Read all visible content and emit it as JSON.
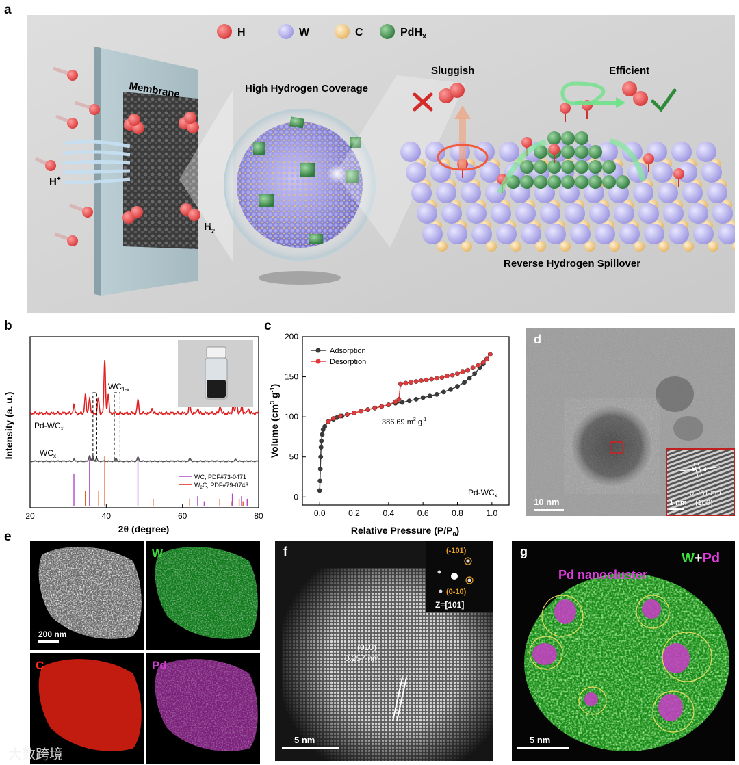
{
  "panel_a": {
    "label": "a",
    "legend": [
      {
        "label": "H",
        "color": "#e04848"
      },
      {
        "label": "W",
        "color": "#b7b3ec"
      },
      {
        "label": "C",
        "color": "#efc98a"
      },
      {
        "label": "PdH",
        "sub": "x",
        "color": "#3f8f4f"
      }
    ],
    "membrane_label": "Membrane",
    "proton_label": "H",
    "proton_sup": "+",
    "h2_label": "H",
    "h2_sub": "2",
    "coverage_label": "High Hydrogen Coverage",
    "sluggish_label": "Sluggish",
    "efficient_label": "Efficient",
    "spillover_label": "Reverse Hydrogen Spillover"
  },
  "panel_b": {
    "label": "b",
    "wc1x_main": "WC",
    "wc1x_sub": "1-x",
    "pd_wcx_main": "Pd-WC",
    "pd_wcx_sub": "x",
    "wcx_main": "WC",
    "wcx_sub": "x",
    "legend_wc": "WC, PDF#73-0471",
    "legend_w2c_main": "W",
    "legend_w2c_sub": "2",
    "legend_w2c_rest": "C, PDF#79-0743"
  },
  "panel_c": {
    "label": "c",
    "area_main": "386.69 m",
    "area_sup": "2",
    "area_rest": " g",
    "area_sup2": "-1",
    "sample_main": "Pd-WC",
    "sample_sub": "x"
  },
  "panel_d": {
    "label": "d",
    "scale_main": "10 nm",
    "scale_inset": "1 nm",
    "d_spacing": "0.251 nm",
    "plane": "(100)"
  },
  "panel_e": {
    "label": "e",
    "scale": "200 nm",
    "map_w": "W",
    "map_c": "C",
    "map_pd": "Pd"
  },
  "panel_f": {
    "label": "f",
    "plane": "(010)",
    "d_spacing": "0.257 nm",
    "fft_spot1": "(-101)",
    "fft_spot2": "(0-10)",
    "zone": "Z=[101]",
    "scale": "5 nm"
  },
  "panel_g": {
    "label": "g",
    "title_w": "W",
    "title_plus": "+",
    "title_pd": "Pd",
    "nanocluster": "Pd nanocluster",
    "scale": "5 nm"
  },
  "watermark": "大数跨境",
  "chart_data": [
    {
      "type": "line",
      "panel": "b",
      "xlabel": "2θ (degree)",
      "ylabel": "Intensity (a. u.)",
      "xlim": [
        20,
        80
      ],
      "x_ticks": [
        "20",
        "40",
        "60",
        "80"
      ],
      "series": [
        {
          "name": "Pd-WCx",
          "color": "#e02020",
          "peaks": [
            [
              31.5,
              0.15
            ],
            [
              34.5,
              0.35
            ],
            [
              35.6,
              0.3
            ],
            [
              37.9,
              0.3
            ],
            [
              39.6,
              1.0
            ],
            [
              40.5,
              0.35
            ],
            [
              48.3,
              0.25
            ],
            [
              52.0,
              0.1
            ],
            [
              61.9,
              0.2
            ],
            [
              64.0,
              0.1
            ],
            [
              69.9,
              0.15
            ],
            [
              73.3,
              0.15
            ],
            [
              74.2,
              0.25
            ],
            [
              75.6,
              0.15
            ],
            [
              77.3,
              0.1
            ]
          ]
        },
        {
          "name": "WCx",
          "color": "#555555",
          "peaks": [
            [
              31.5,
              0.1
            ],
            [
              35.6,
              0.3
            ],
            [
              36.5,
              0.25
            ],
            [
              37.4,
              0.15
            ],
            [
              42.6,
              0.15
            ],
            [
              48.3,
              0.2
            ],
            [
              62.0,
              0.15
            ],
            [
              74.0,
              0.1
            ]
          ]
        }
      ],
      "reference_lines": [
        {
          "name": "WC, PDF#73-0471",
          "color": "#b04cc8",
          "positions": [
            31.5,
            35.6,
            48.3,
            64.0,
            65.7,
            73.1,
            75.5,
            77.0
          ]
        },
        {
          "name": "W2C, PDF#79-0743",
          "color": "#e45a1e",
          "positions": [
            34.5,
            38.0,
            39.6,
            52.3,
            61.9,
            69.8,
            72.8,
            74.9,
            75.9
          ]
        }
      ],
      "reference_heights": {
        "WC": [
          0.65,
          1.0,
          1.0,
          0.2,
          0.1,
          0.25,
          0.2,
          0.15
        ],
        "W2C": [
          0.3,
          0.3,
          1.0,
          0.15,
          0.15,
          0.15,
          0.1,
          0.15,
          0.1
        ]
      },
      "wc1x_region_x": [
        [
          36.5,
          37.5
        ],
        [
          42.1,
          43.6
        ]
      ]
    },
    {
      "type": "line",
      "panel": "c",
      "xlabel": "Relative Pressure (P/P",
      "xlabel_sub": "0",
      "xlabel_end": ")",
      "ylabel": "Volume (cm",
      "ylabel_sup": "3",
      "ylabel_mid": " g",
      "ylabel_sup2": "-1",
      "ylabel_end": ")",
      "xlim": [
        -0.1,
        1.1
      ],
      "ylim": [
        -10,
        200
      ],
      "x_ticks": [
        "0.0",
        "0.2",
        "0.4",
        "0.6",
        "0.8",
        "1.0"
      ],
      "y_ticks": [
        "0",
        "50",
        "100",
        "150",
        "200"
      ],
      "series": [
        {
          "name": "Adsorption",
          "color": "#3a3a3a",
          "x": [
            0.0,
            0.002,
            0.004,
            0.006,
            0.008,
            0.01,
            0.015,
            0.02,
            0.03,
            0.05,
            0.08,
            0.1,
            0.13,
            0.16,
            0.2,
            0.24,
            0.28,
            0.32,
            0.36,
            0.4,
            0.44,
            0.48,
            0.52,
            0.56,
            0.6,
            0.64,
            0.68,
            0.72,
            0.76,
            0.8,
            0.84,
            0.87,
            0.9,
            0.93,
            0.95,
            0.97,
            0.99
          ],
          "y": [
            8,
            20,
            35,
            50,
            62,
            70,
            78,
            84,
            88,
            94,
            97,
            99,
            101,
            103,
            105,
            107,
            109,
            111,
            113,
            115,
            117,
            118,
            120,
            122,
            124,
            126,
            128,
            131,
            134,
            138,
            143,
            148,
            154,
            161,
            166,
            172,
            178
          ]
        },
        {
          "name": "Desorption",
          "color": "#e23a3a",
          "x": [
            0.99,
            0.97,
            0.95,
            0.92,
            0.89,
            0.86,
            0.83,
            0.8,
            0.77,
            0.74,
            0.71,
            0.68,
            0.65,
            0.62,
            0.59,
            0.56,
            0.53,
            0.5,
            0.47,
            0.46,
            0.44,
            0.4,
            0.36,
            0.32,
            0.28,
            0.24,
            0.2,
            0.16,
            0.12,
            0.08,
            0.05
          ],
          "y": [
            178,
            172,
            168,
            164,
            161,
            158,
            156,
            154,
            152,
            151,
            149,
            148,
            147,
            146,
            145,
            144,
            143,
            142,
            141,
            122,
            119,
            115,
            113,
            111,
            109,
            107,
            105,
            103,
            101,
            98,
            94
          ]
        }
      ],
      "legend_position": "top-left"
    }
  ]
}
